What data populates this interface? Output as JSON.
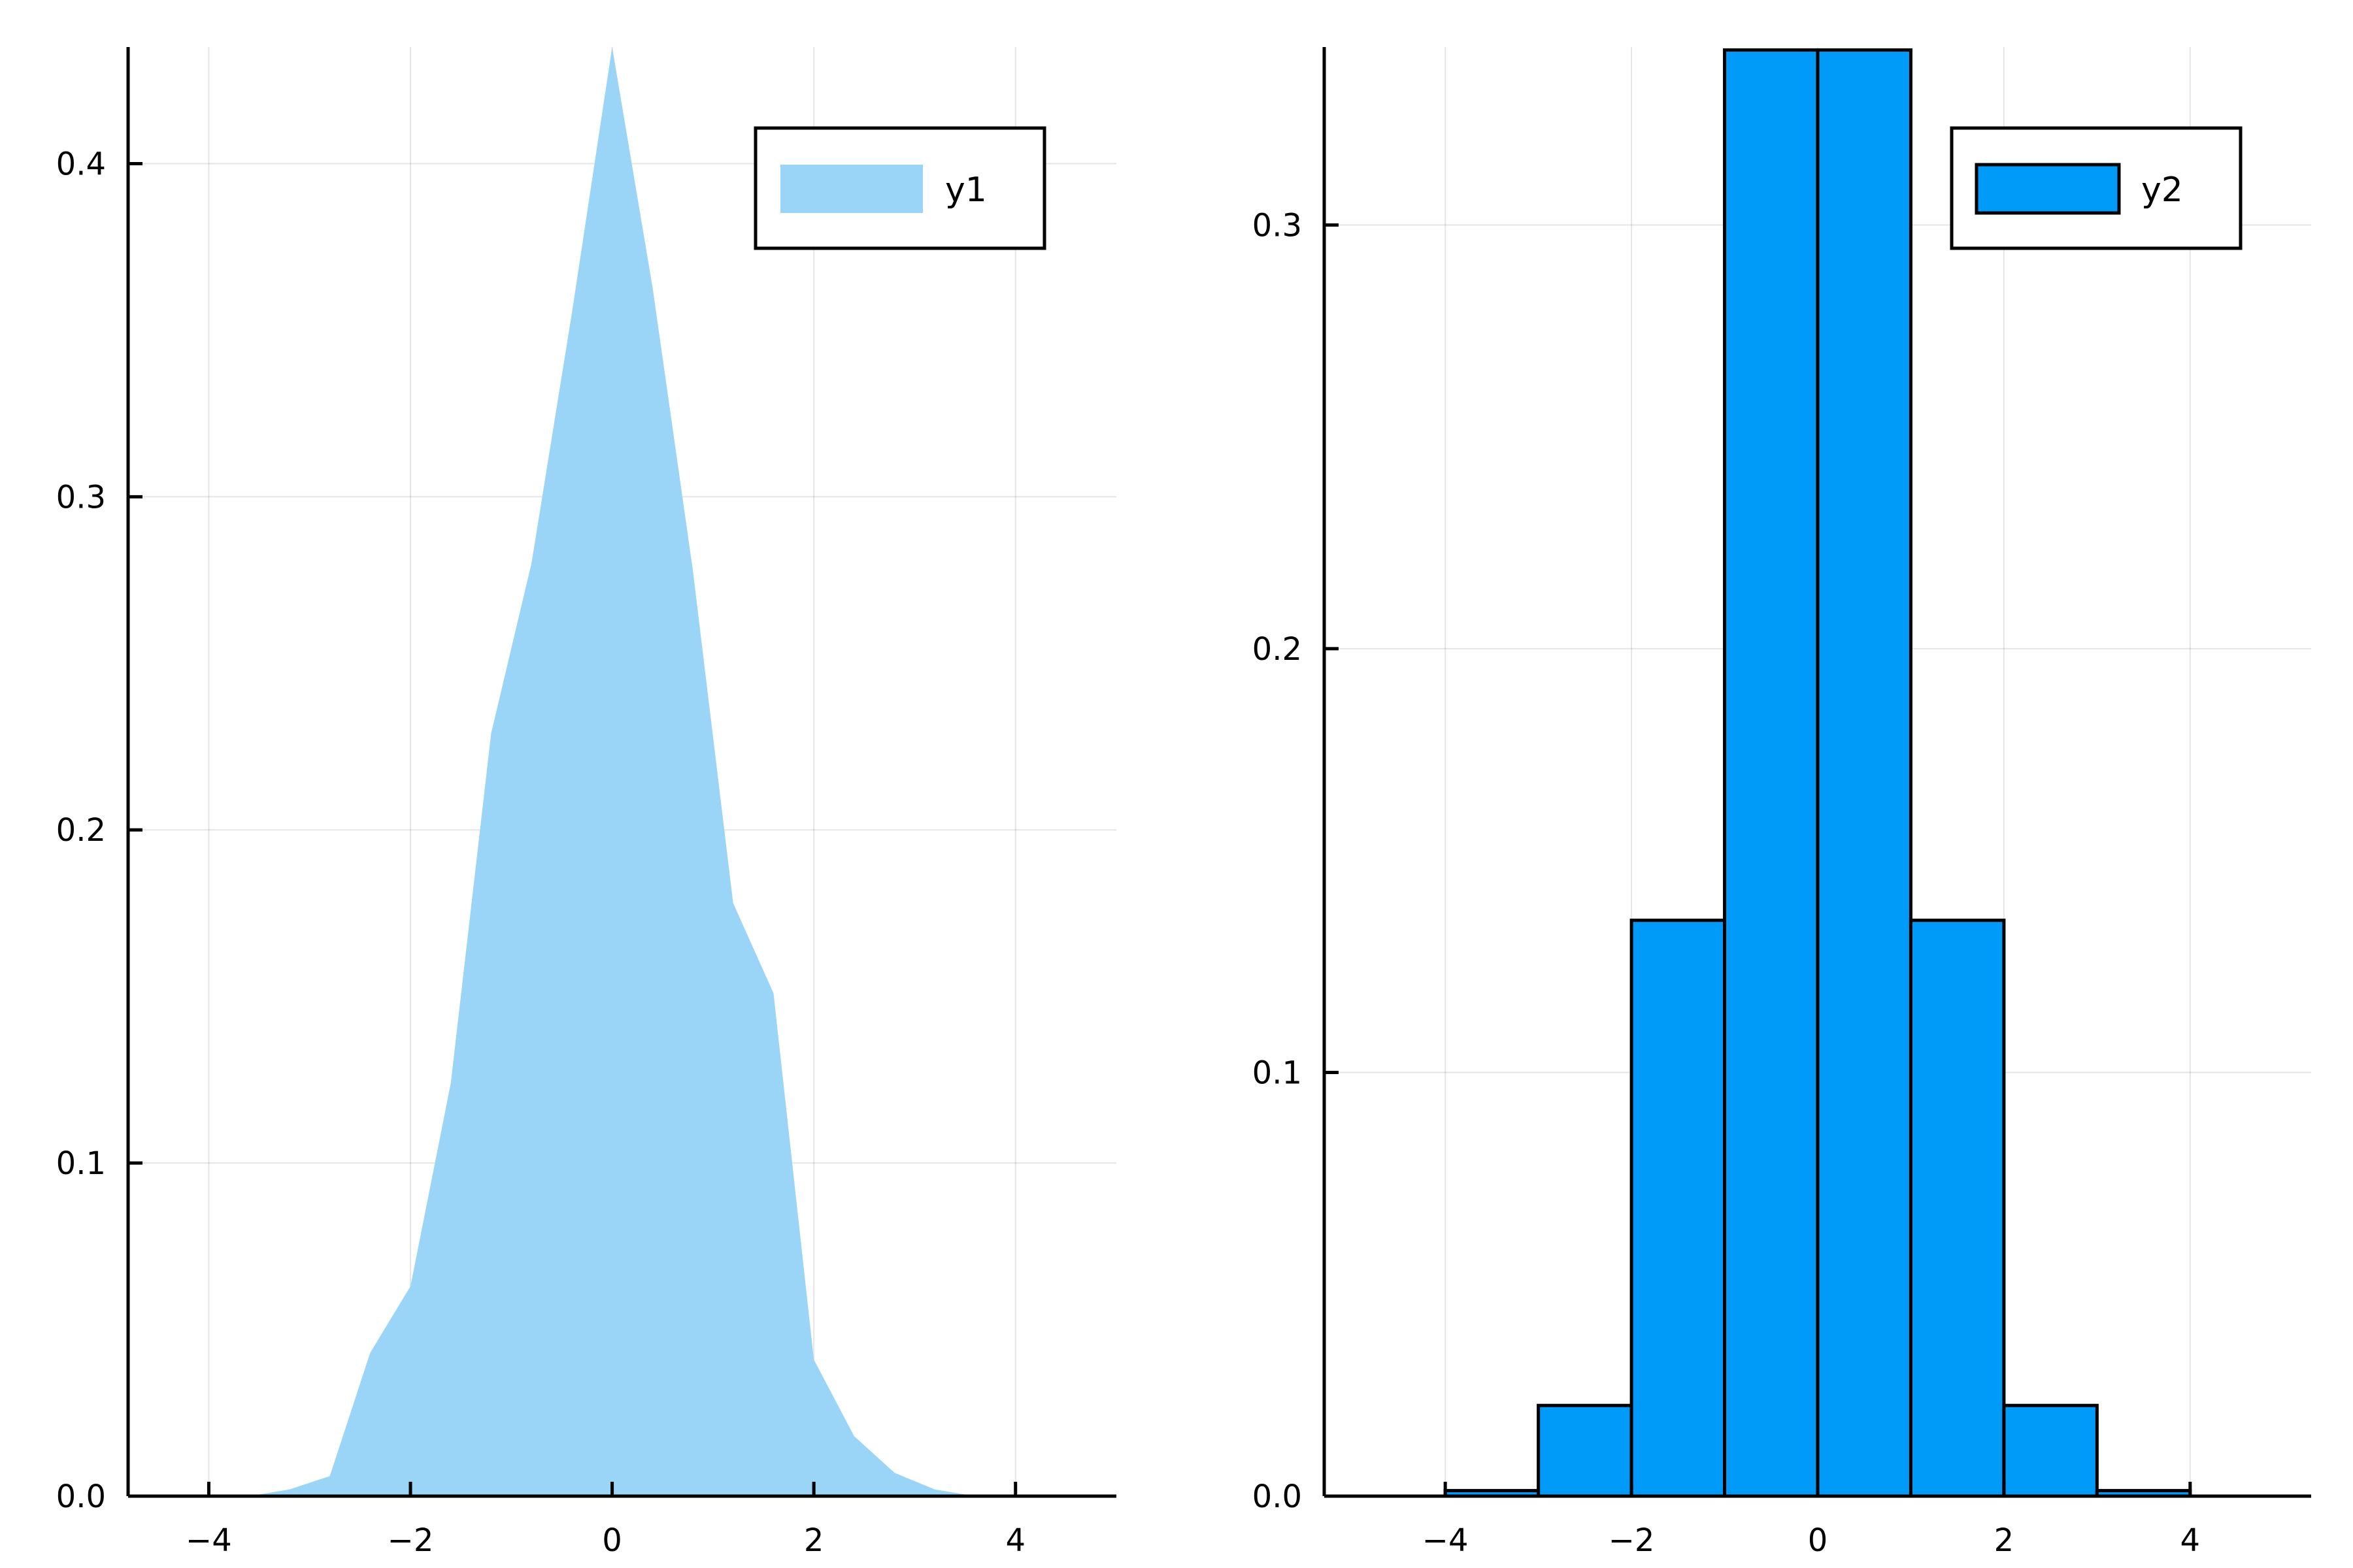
{
  "chart_data": [
    {
      "type": "area",
      "title": "",
      "xlabel": "",
      "ylabel": "",
      "xlim": [
        -4.8,
        5.0
      ],
      "ylim": [
        0,
        0.435
      ],
      "xticks": [
        -4,
        -2,
        0,
        2,
        4
      ],
      "xtick_labels": [
        "−4",
        "−2",
        "0",
        "2",
        "4"
      ],
      "yticks": [
        0.0,
        0.1,
        0.2,
        0.3,
        0.4
      ],
      "ytick_labels": [
        "0.0",
        "0.1",
        "0.2",
        "0.3",
        "0.4"
      ],
      "grid": true,
      "legend_position": "top-right",
      "series": [
        {
          "name": "y1",
          "color": "#9ad5f8",
          "x": [
            -3.6,
            -3.2,
            -2.8,
            -2.4,
            -2.0,
            -1.6,
            -1.2,
            -0.8,
            -0.4,
            0.0,
            0.4,
            0.8,
            1.2,
            1.6,
            2.0,
            2.4,
            2.8,
            3.2,
            3.6
          ],
          "y": [
            0.0,
            0.002,
            0.006,
            0.043,
            0.063,
            0.124,
            0.229,
            0.28,
            0.355,
            0.435,
            0.363,
            0.278,
            0.178,
            0.151,
            0.041,
            0.018,
            0.007,
            0.002,
            0.0
          ]
        }
      ]
    },
    {
      "type": "bar",
      "title": "",
      "xlabel": "",
      "ylabel": "",
      "xlim": [
        -5.3,
        5.3
      ],
      "ylim": [
        0,
        0.342
      ],
      "xticks": [
        -4,
        -2,
        0,
        2,
        4
      ],
      "xtick_labels": [
        "−4",
        "−2",
        "0",
        "2",
        "4"
      ],
      "yticks": [
        0.0,
        0.1,
        0.2,
        0.3
      ],
      "ytick_labels": [
        "0.0",
        "0.1",
        "0.2",
        "0.3"
      ],
      "grid": true,
      "legend_position": "top-right",
      "bin_edges": [
        -4,
        -3,
        -2,
        -1,
        0,
        1,
        2,
        3,
        4
      ],
      "series": [
        {
          "name": "y2",
          "color": "#009af9",
          "values": [
            0.0013,
            0.0214,
            0.1359,
            0.3413,
            0.3413,
            0.1359,
            0.0214,
            0.0013
          ]
        }
      ]
    }
  ]
}
